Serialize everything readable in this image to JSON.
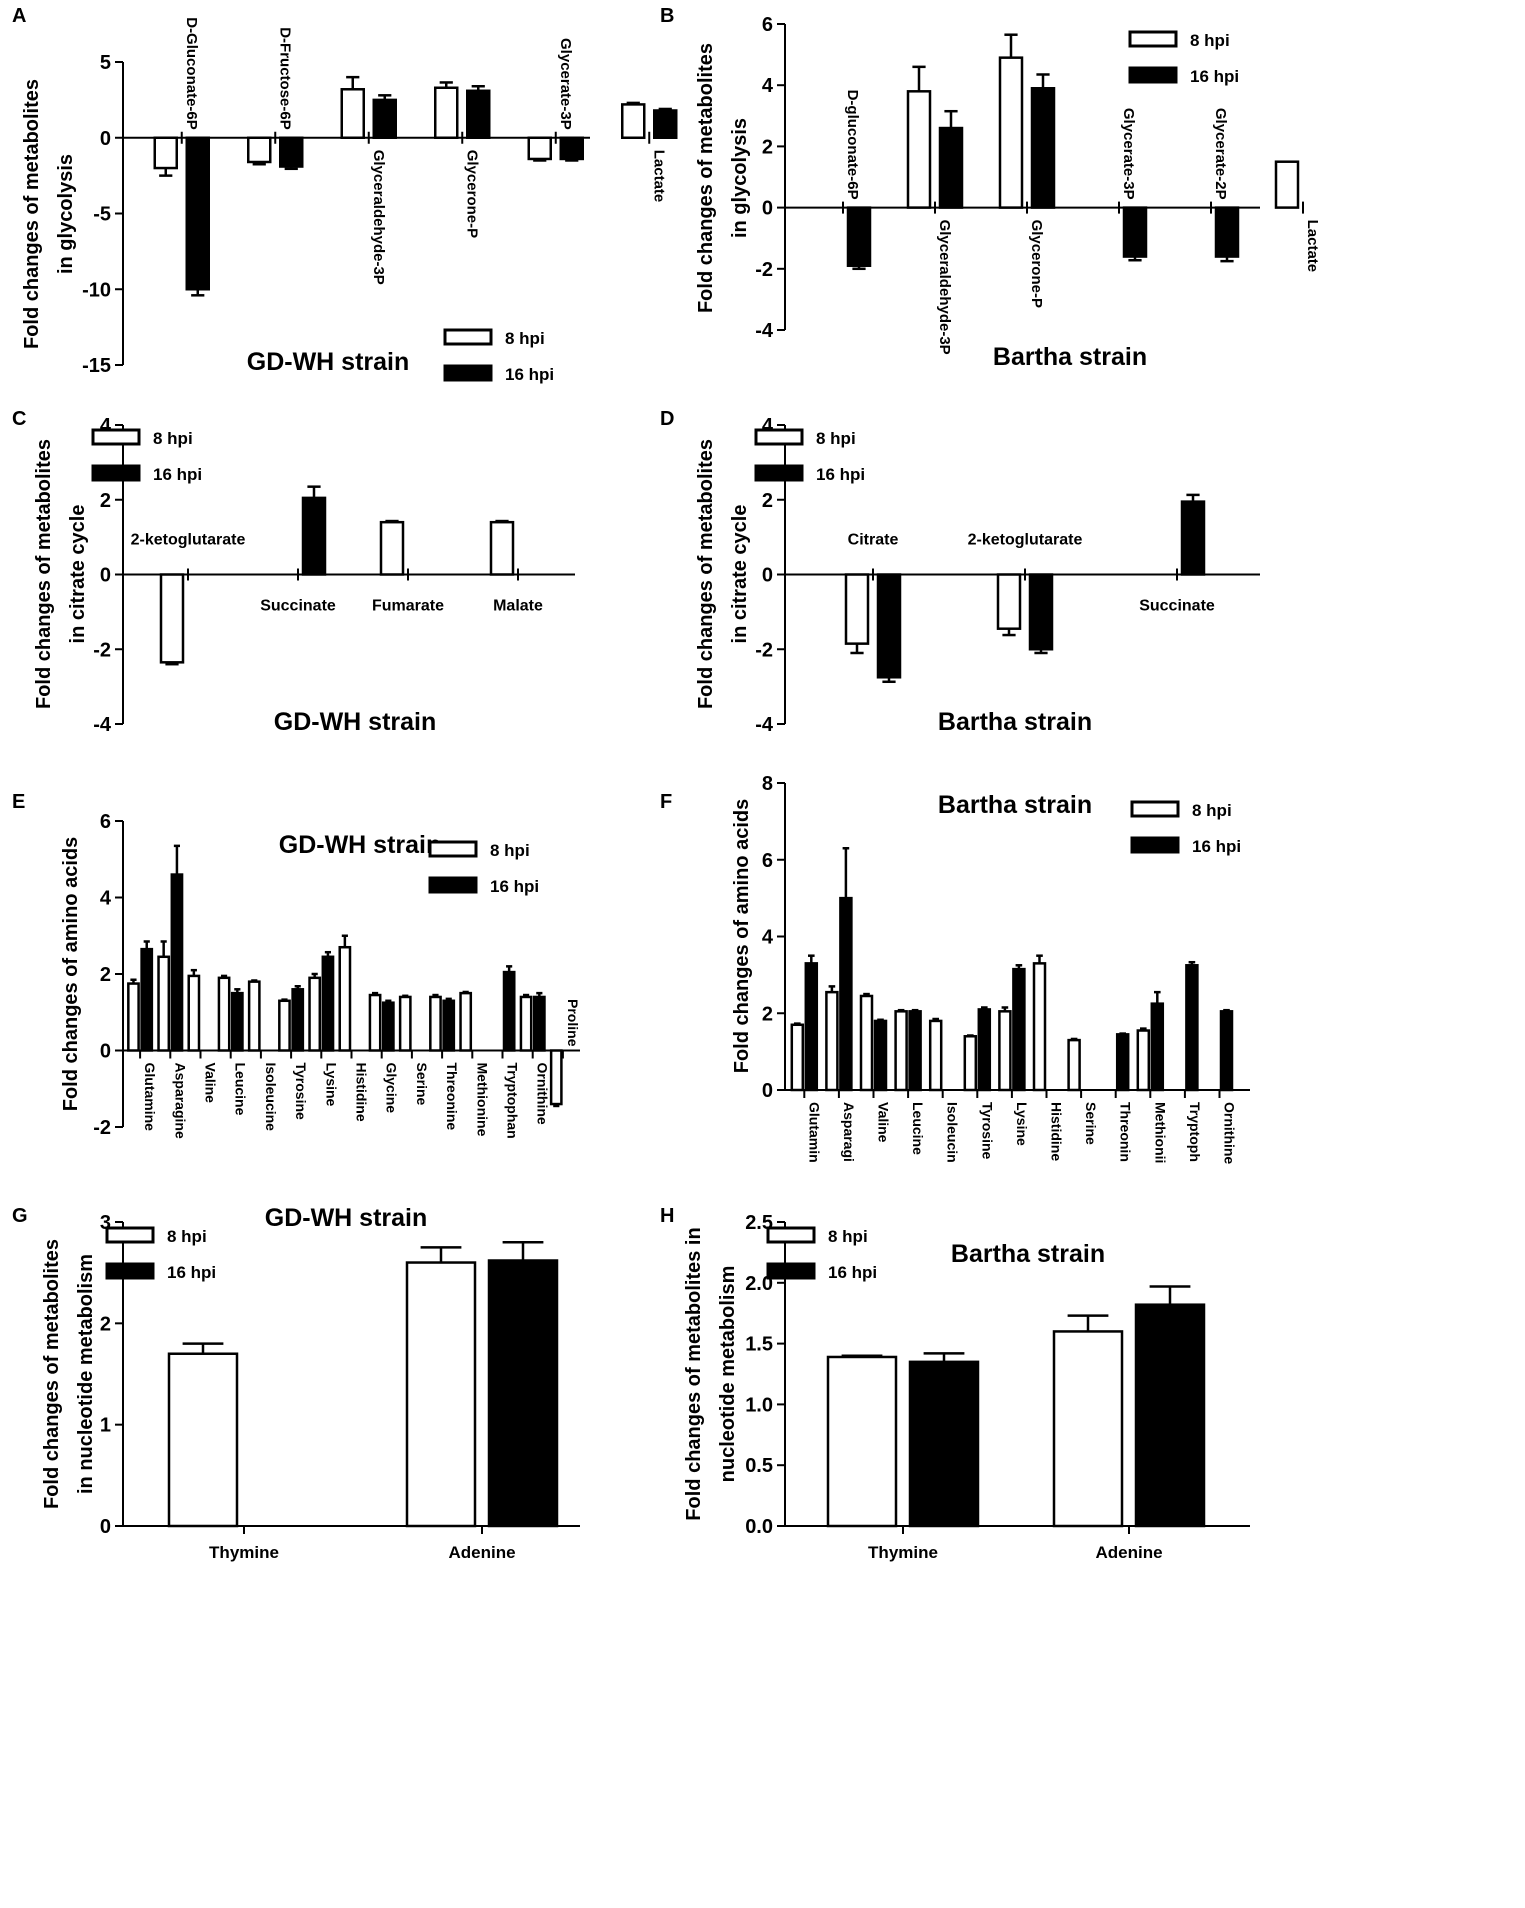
{
  "legend": {
    "s1": "8 hpi",
    "s2": "16 hpi"
  },
  "chart_data": [
    {
      "panel": "A",
      "type": "bar",
      "title": "GD-WH strain",
      "ylabel": [
        "Fold changes of metabolites",
        "in glycolysis"
      ],
      "ylim": [
        -15,
        5
      ],
      "yticks": [
        -15,
        -10,
        -5,
        0,
        5
      ],
      "categories": [
        "D-Gluconate-6P",
        "D-Fructose-6P",
        "Glyceraldehyde-3P",
        "Glycerone-P",
        "Glycerate-3P",
        "Lactate"
      ],
      "label_side": [
        "above",
        "above",
        "below",
        "below",
        "above",
        "below"
      ],
      "series": [
        {
          "name": "8 hpi",
          "values": [
            -2.0,
            -1.6,
            3.2,
            3.3,
            -1.4,
            2.2
          ],
          "errors": [
            0.5,
            0.15,
            0.8,
            0.35,
            0.1,
            0.1
          ]
        },
        {
          "name": "16 hpi",
          "values": [
            -10.0,
            -1.9,
            2.5,
            3.1,
            -1.4,
            1.8
          ],
          "errors": [
            0.4,
            0.15,
            0.3,
            0.3,
            0.1,
            0.1
          ]
        }
      ]
    },
    {
      "panel": "B",
      "type": "bar",
      "title": "Bartha strain",
      "ylabel": [
        "Fold changes of metabolites",
        "in glycolysis"
      ],
      "ylim": [
        -4,
        6
      ],
      "yticks": [
        -4,
        -2,
        0,
        2,
        4,
        6
      ],
      "categories": [
        "D-gluconate-6P",
        "Glyceraldehyde-3P",
        "Glycerone-P",
        "Glycerate-3P",
        "Glycerate-2P",
        "Lactate"
      ],
      "label_side": [
        "above",
        "below",
        "below",
        "above",
        "above",
        "below"
      ],
      "series": [
        {
          "name": "8 hpi",
          "values": [
            null,
            3.8,
            4.9,
            null,
            null,
            1.5
          ],
          "errors": [
            0,
            0.8,
            0.75,
            0,
            0,
            0
          ]
        },
        {
          "name": "16 hpi",
          "values": [
            -1.9,
            2.6,
            3.9,
            -1.6,
            -1.6,
            null
          ],
          "errors": [
            0.1,
            0.55,
            0.45,
            0.12,
            0.15,
            0
          ]
        }
      ]
    },
    {
      "panel": "C",
      "type": "bar",
      "title": "GD-WH strain",
      "ylabel": [
        "Fold changes of metabolites",
        "in citrate cycle"
      ],
      "ylim": [
        -4,
        4
      ],
      "yticks": [
        -4,
        -2,
        0,
        2,
        4
      ],
      "categories": [
        "2-ketoglutarate",
        "Succinate",
        "Fumarate",
        "Malate"
      ],
      "label_side": [
        "above",
        "below",
        "below",
        "below"
      ],
      "series": [
        {
          "name": "8 hpi",
          "values": [
            -2.35,
            null,
            1.4,
            1.4
          ],
          "errors": [
            0.05,
            0,
            0.03,
            0.03
          ]
        },
        {
          "name": "16 hpi",
          "values": [
            null,
            2.05,
            null,
            null
          ],
          "errors": [
            0,
            0.3,
            0,
            0
          ]
        }
      ]
    },
    {
      "panel": "D",
      "type": "bar",
      "title": "Bartha strain",
      "ylabel": [
        "Fold changes of metabolites",
        "in citrate cycle"
      ],
      "ylim": [
        -4,
        4
      ],
      "yticks": [
        -4,
        -2,
        0,
        2,
        4
      ],
      "categories": [
        "Citrate",
        "2-ketoglutarate",
        "Succinate"
      ],
      "label_side": [
        "above",
        "above",
        "below"
      ],
      "series": [
        {
          "name": "8 hpi",
          "values": [
            -1.85,
            -1.45,
            null
          ],
          "errors": [
            0.25,
            0.17,
            0
          ]
        },
        {
          "name": "16 hpi",
          "values": [
            -2.75,
            -2.0,
            1.95
          ],
          "errors": [
            0.12,
            0.1,
            0.18
          ]
        }
      ]
    },
    {
      "panel": "E",
      "type": "bar",
      "title": "GD-WH strain",
      "ylabel": [
        "Fold changes of amino acids"
      ],
      "ylim": [
        -2,
        6
      ],
      "yticks": [
        -2,
        0,
        2,
        4,
        6
      ],
      "categories": [
        "Glutamine",
        "Asparagine",
        "Valine",
        "Leucine",
        "Isoleucine",
        "Tyrosine",
        "Lysine",
        "Histidine",
        "Glycine",
        "Serine",
        "Threonine",
        "Methionine",
        "Tryptophan",
        "Ornithine",
        "Proline"
      ],
      "series": [
        {
          "name": "8 hpi",
          "values": [
            1.75,
            2.45,
            1.95,
            1.9,
            1.8,
            1.3,
            1.9,
            2.7,
            1.45,
            1.4,
            1.4,
            1.5,
            null,
            1.4,
            -1.4
          ],
          "errors": [
            0.1,
            0.4,
            0.15,
            0.05,
            0.03,
            0.03,
            0.1,
            0.3,
            0.05,
            0.03,
            0.05,
            0.03,
            0,
            0.05,
            0.05
          ]
        },
        {
          "name": "16 hpi",
          "values": [
            2.65,
            4.6,
            null,
            1.5,
            null,
            1.6,
            2.45,
            null,
            1.25,
            null,
            1.3,
            null,
            2.05,
            1.4,
            null
          ],
          "errors": [
            0.2,
            0.75,
            0,
            0.1,
            0,
            0.08,
            0.12,
            0,
            0.05,
            0,
            0.05,
            0,
            0.15,
            0.1,
            0
          ]
        }
      ]
    },
    {
      "panel": "F",
      "type": "bar",
      "title": "Bartha strain",
      "ylabel": [
        "Fold changes of amino acids"
      ],
      "ylim": [
        0,
        8
      ],
      "yticks": [
        0,
        2,
        4,
        6,
        8
      ],
      "categories": [
        "Glutamine",
        "Asparagine",
        "Valine",
        "Leucine",
        "Isoleucine",
        "Tyrosine",
        "Lysine",
        "Histidine",
        "Serine",
        "Threonine",
        "Methionine",
        "Tryptophan",
        "Ornithine"
      ],
      "tick_labels": [
        "Glutamin",
        "Asparagi",
        "Valine",
        "Leucine",
        "Isoleucin",
        "Tyrosine",
        "Lysine",
        "Histidine",
        "Serine",
        "Threonin",
        "Methionii",
        "Tryptoph",
        "Ornithine"
      ],
      "series": [
        {
          "name": "8 hpi",
          "values": [
            1.7,
            2.55,
            2.45,
            2.05,
            1.8,
            1.4,
            2.05,
            3.3,
            1.3,
            null,
            1.55,
            null,
            null
          ],
          "errors": [
            0.03,
            0.15,
            0.05,
            0.03,
            0.05,
            0.02,
            0.1,
            0.2,
            0.03,
            0,
            0.05,
            0,
            0
          ]
        },
        {
          "name": "16 hpi",
          "values": [
            3.3,
            5.0,
            1.8,
            2.05,
            null,
            2.1,
            3.15,
            null,
            null,
            1.45,
            2.25,
            3.25,
            2.05
          ],
          "errors": [
            0.2,
            1.3,
            0.03,
            0.03,
            0,
            0.05,
            0.1,
            0,
            0,
            0.02,
            0.3,
            0.08,
            0.03
          ]
        }
      ]
    },
    {
      "panel": "G",
      "type": "bar",
      "title": "GD-WH strain",
      "ylabel": [
        "Fold changes of metabolites",
        "in nucleotide metabolism"
      ],
      "ylim": [
        0,
        3
      ],
      "yticks": [
        0,
        1,
        2,
        3
      ],
      "categories": [
        "Thymine",
        "Adenine"
      ],
      "series": [
        {
          "name": "8 hpi",
          "values": [
            1.7,
            2.6
          ],
          "errors": [
            0.1,
            0.15
          ]
        },
        {
          "name": "16 hpi",
          "values": [
            null,
            2.62
          ],
          "errors": [
            0,
            0.18
          ]
        }
      ]
    },
    {
      "panel": "H",
      "type": "bar",
      "title": "Bartha strain",
      "ylabel": [
        "Fold changes of metabolites in",
        "nucleotide metabolism"
      ],
      "ylim": [
        0,
        2.5
      ],
      "yticks": [
        "0.0",
        "0.5",
        "1.0",
        "1.5",
        "2.0",
        "2.5"
      ],
      "categories": [
        "Thymine",
        "Adenine"
      ],
      "series": [
        {
          "name": "8 hpi",
          "values": [
            1.39,
            1.6
          ],
          "errors": [
            0.01,
            0.13
          ]
        },
        {
          "name": "16 hpi",
          "values": [
            1.35,
            1.82
          ],
          "errors": [
            0.07,
            0.15
          ]
        }
      ]
    }
  ]
}
